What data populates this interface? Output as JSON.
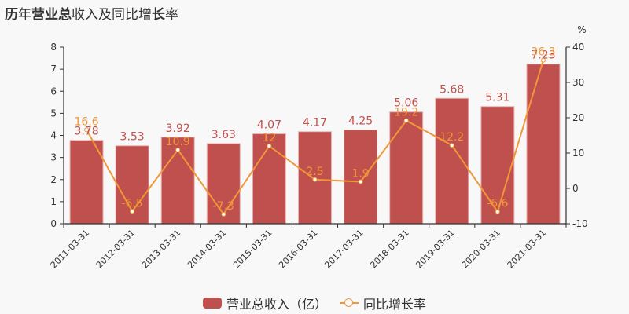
{
  "title": {
    "parts": [
      {
        "text": "历",
        "bold": true
      },
      {
        "text": "年",
        "bold": false
      },
      {
        "text": "营业总",
        "bold": true
      },
      {
        "text": "收入及同比增",
        "bold": false
      },
      {
        "text": "长",
        "bold": true
      },
      {
        "text": "率",
        "bold": false
      }
    ],
    "full": "历年营业总收入及同比增长率"
  },
  "colors": {
    "background": "#f8f8f8",
    "bar": "#c0504d",
    "line": "#f0973a",
    "axis": "#333333"
  },
  "legend": {
    "bar_label": "营业总收入（亿）",
    "line_label": "同比增长率"
  },
  "right_axis_unit": "%",
  "chart_data": {
    "type": "bar+line",
    "title": "历年营业总收入及同比增长率",
    "categories": [
      "2011-03-31",
      "2012-03-31",
      "2013-03-31",
      "2014-03-31",
      "2015-03-31",
      "2016-03-31",
      "2017-03-31",
      "2018-03-31",
      "2019-03-31",
      "2020-03-31",
      "2021-03-31"
    ],
    "series": [
      {
        "name": "营业总收入（亿）",
        "type": "bar",
        "axis": "left",
        "values": [
          3.78,
          3.53,
          3.92,
          3.63,
          4.07,
          4.17,
          4.25,
          5.06,
          5.68,
          5.31,
          7.23
        ]
      },
      {
        "name": "同比增长率",
        "type": "line",
        "axis": "right",
        "values": [
          16.6,
          -6.5,
          10.9,
          -7.3,
          12,
          2.5,
          1.9,
          19.2,
          12.2,
          -6.6,
          36.3
        ]
      }
    ],
    "left_axis": {
      "min": 0,
      "max": 8,
      "ticks": [
        0,
        1,
        2,
        3,
        4,
        5,
        6,
        7,
        8
      ]
    },
    "right_axis": {
      "min": -10,
      "max": 40,
      "ticks": [
        -10,
        0,
        10,
        20,
        30,
        40
      ],
      "label": "%"
    },
    "xlabel": "",
    "ylabel": "",
    "grid": false,
    "legend_position": "bottom"
  }
}
